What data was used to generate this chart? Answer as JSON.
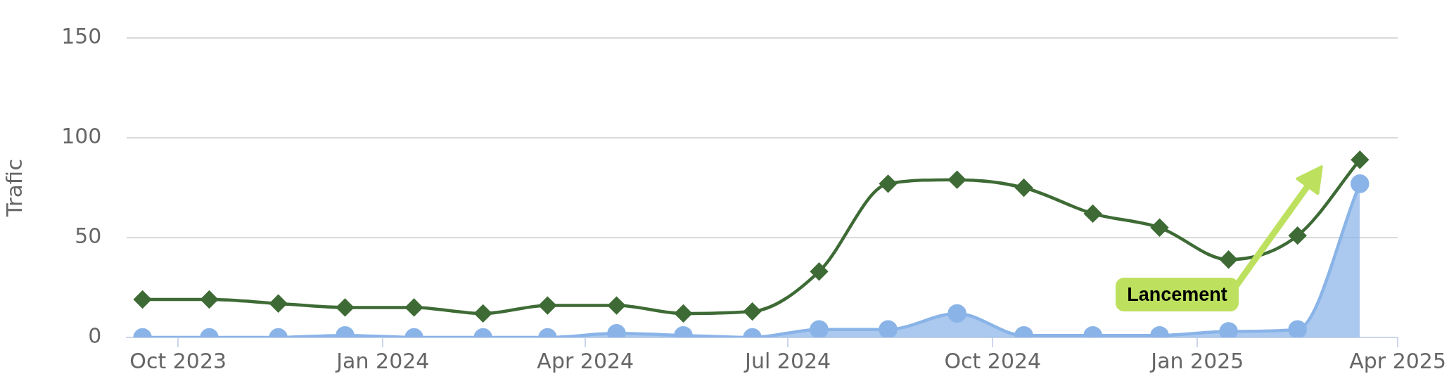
{
  "chart_data": {
    "type": "line",
    "ylabel": "Trafic",
    "x": [
      "2023-09-15",
      "2023-10-15",
      "2023-11-15",
      "2023-12-15",
      "2024-01-15",
      "2024-02-15",
      "2024-03-15",
      "2024-04-15",
      "2024-05-15",
      "2024-06-15",
      "2024-07-15",
      "2024-08-15",
      "2024-09-15",
      "2024-10-15",
      "2024-11-15",
      "2024-12-15",
      "2025-01-15",
      "2025-02-15",
      "2025-03-15"
    ],
    "series": [
      {
        "color": "#3e6b35",
        "marker": "diamond",
        "values": [
          19,
          19,
          17,
          15,
          15,
          12,
          16,
          16,
          12,
          13,
          33,
          77,
          79,
          75,
          62,
          55,
          39,
          51,
          89
        ]
      },
      {
        "type": "area",
        "color": "#8ab4e8",
        "marker": "circle",
        "values": [
          0,
          0,
          0,
          1,
          0,
          0,
          0,
          2,
          1,
          0,
          4,
          4,
          12,
          1,
          1,
          1,
          3,
          4,
          77
        ]
      }
    ],
    "xlim": [
      "2023-09-08",
      "2025-04-01"
    ],
    "xticks": [
      {
        "value": "2023-10-01",
        "label": "Oct 2023"
      },
      {
        "value": "2024-01-01",
        "label": "Jan 2024"
      },
      {
        "value": "2024-04-01",
        "label": "Apr 2024"
      },
      {
        "value": "2024-07-01",
        "label": "Jul 2024"
      },
      {
        "value": "2024-10-01",
        "label": "Oct 2024"
      },
      {
        "value": "2025-01-01",
        "label": "Jan 2025"
      },
      {
        "value": "2025-04-01",
        "label": "Apr 2025"
      }
    ],
    "ylim": [
      0,
      150
    ],
    "yticks": [
      0,
      50,
      100,
      150
    ],
    "grid": "y",
    "line_style": "solid",
    "annotations": [
      "Lancement"
    ]
  }
}
